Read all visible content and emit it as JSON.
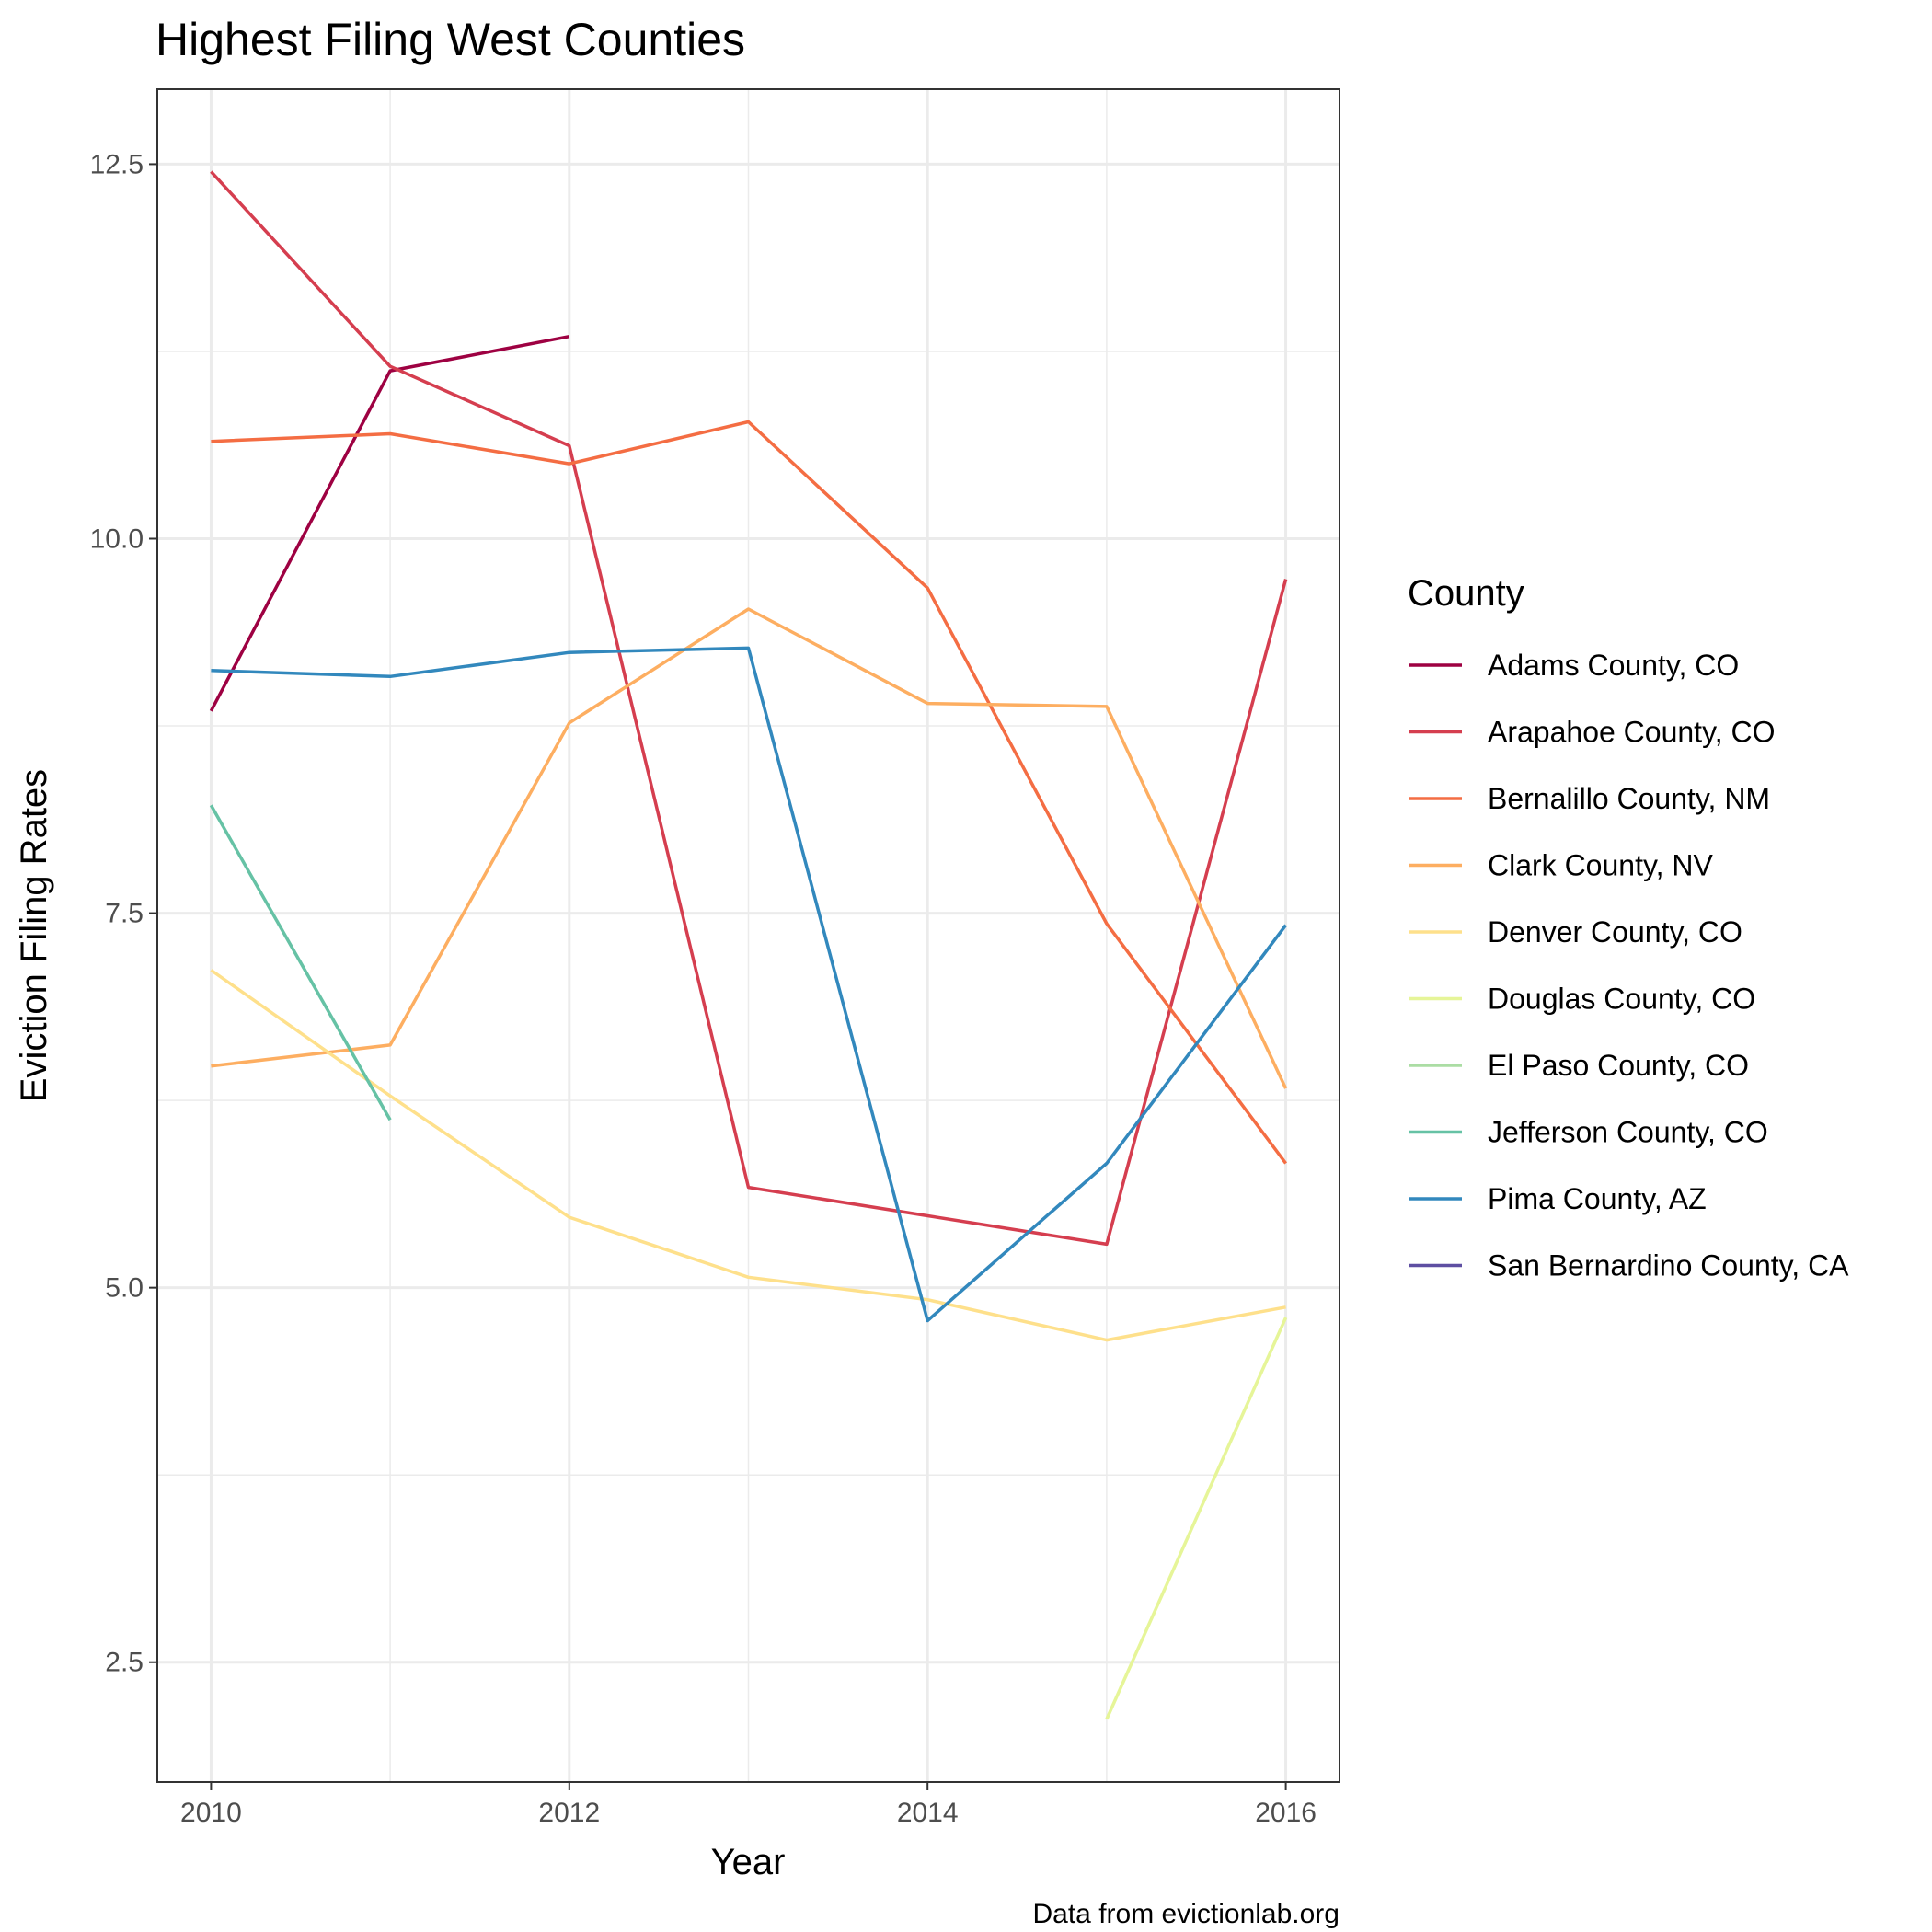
{
  "chart_data": {
    "type": "line",
    "title": "Highest Filing West Counties",
    "xlabel": "Year",
    "ylabel": "Eviction Filing Rates",
    "caption": "Data from evictionlab.org",
    "legend_title": "County",
    "legend_position": "right",
    "grid": true,
    "xlim": [
      2009.7,
      2016.3
    ],
    "ylim": [
      1.7,
      13.0
    ],
    "x_ticks": [
      2010,
      2012,
      2014,
      2016
    ],
    "x_tick_labels": [
      "2010",
      "2012",
      "2014",
      "2016"
    ],
    "y_ticks": [
      2.5,
      5.0,
      7.5,
      10.0,
      12.5
    ],
    "y_tick_labels": [
      "2.5",
      "5.0",
      "7.5",
      "10.0",
      "12.5"
    ],
    "x": [
      2010,
      2011,
      2012,
      2013,
      2014,
      2015,
      2016
    ],
    "series": [
      {
        "name": "Adams County, CO",
        "color": "#9E0142",
        "values": [
          8.85,
          11.12,
          11.35,
          null,
          null,
          null,
          null
        ]
      },
      {
        "name": "Arapahoe County, CO",
        "color": "#D53E4F",
        "values": [
          12.45,
          11.15,
          10.62,
          5.67,
          5.48,
          5.29,
          9.73
        ]
      },
      {
        "name": "Bernalillo County, NM",
        "color": "#F46D43",
        "values": [
          10.65,
          10.7,
          10.5,
          10.78,
          9.67,
          7.43,
          5.83
        ]
      },
      {
        "name": "Clark County, NV",
        "color": "#FDAE61",
        "values": [
          6.48,
          6.62,
          8.77,
          9.53,
          8.9,
          8.88,
          6.33
        ]
      },
      {
        "name": "Denver County, CO",
        "color": "#FEE08B",
        "values": [
          7.12,
          6.28,
          5.47,
          5.07,
          4.92,
          4.65,
          4.87
        ]
      },
      {
        "name": "Douglas County, CO",
        "color": "#E6F598",
        "values": [
          null,
          null,
          null,
          null,
          null,
          2.12,
          4.8
        ]
      },
      {
        "name": "El Paso County, CO",
        "color": "#ABDDA4",
        "values": [
          null,
          null,
          null,
          null,
          null,
          null,
          null
        ]
      },
      {
        "name": "Jefferson County, CO",
        "color": "#66C2A5",
        "values": [
          8.22,
          6.12,
          null,
          null,
          null,
          null,
          null
        ]
      },
      {
        "name": "Pima County, AZ",
        "color": "#3288BD",
        "values": [
          9.12,
          9.08,
          9.24,
          9.27,
          4.78,
          5.83,
          7.42
        ]
      },
      {
        "name": "San Bernardino County, CA",
        "color": "#5E4FA2",
        "values": [
          null,
          null,
          null,
          null,
          null,
          null,
          null
        ]
      }
    ]
  }
}
